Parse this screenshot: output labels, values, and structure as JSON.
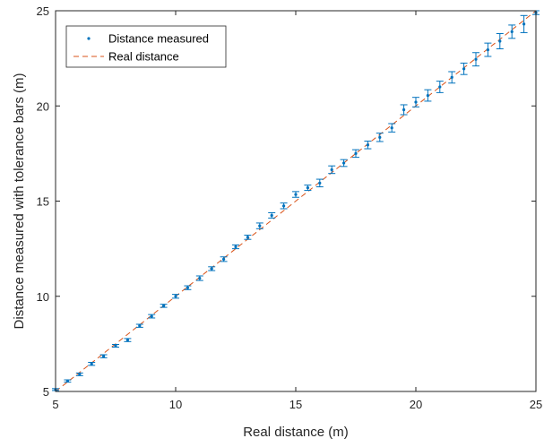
{
  "chart_data": {
    "type": "scatter",
    "title": "",
    "xlabel": "Real distance (m)",
    "ylabel": "Distance measured with tolerance bars (m)",
    "xlim": [
      5,
      25
    ],
    "ylim": [
      5,
      25
    ],
    "xticks": [
      "5",
      "10",
      "15",
      "20",
      "25"
    ],
    "yticks": [
      "5",
      "10",
      "15",
      "20",
      "25"
    ],
    "grid": false,
    "legend_position": "top-left",
    "series": [
      {
        "name": "Distance measured",
        "style": "point-with-errorbars",
        "color": "#0072BD",
        "x": [
          5,
          5.5,
          6,
          6.5,
          7,
          7.5,
          8,
          8.5,
          9,
          9.5,
          10,
          10.5,
          11,
          11.5,
          12,
          12.5,
          13,
          13.5,
          14,
          14.5,
          15,
          15.5,
          16,
          16.5,
          17,
          17.5,
          18,
          18.5,
          19,
          19.5,
          20,
          20.5,
          21,
          21.5,
          22,
          22.5,
          23,
          23.5,
          24,
          24.5,
          25
        ],
        "y": [
          5.1,
          5.55,
          5.9,
          6.45,
          6.85,
          7.4,
          7.7,
          8.45,
          8.95,
          9.5,
          10.0,
          10.45,
          10.95,
          11.45,
          11.95,
          12.6,
          13.1,
          13.7,
          14.25,
          14.75,
          15.35,
          15.7,
          15.95,
          16.65,
          17.0,
          17.5,
          17.95,
          18.35,
          18.85,
          19.8,
          20.2,
          20.55,
          21.0,
          21.5,
          21.95,
          22.45,
          22.95,
          23.4,
          23.9,
          24.3,
          24.9
        ],
        "error": [
          0.05,
          0.06,
          0.07,
          0.08,
          0.08,
          0.07,
          0.08,
          0.08,
          0.09,
          0.08,
          0.1,
          0.1,
          0.12,
          0.1,
          0.12,
          0.1,
          0.11,
          0.15,
          0.14,
          0.15,
          0.15,
          0.14,
          0.2,
          0.2,
          0.18,
          0.2,
          0.2,
          0.22,
          0.22,
          0.26,
          0.25,
          0.3,
          0.3,
          0.3,
          0.3,
          0.35,
          0.35,
          0.4,
          0.35,
          0.45,
          0.1
        ]
      },
      {
        "name": "Real distance",
        "style": "dashed-line",
        "color": "#D95319",
        "x": [
          5,
          25
        ],
        "y": [
          5,
          25
        ]
      }
    ]
  }
}
